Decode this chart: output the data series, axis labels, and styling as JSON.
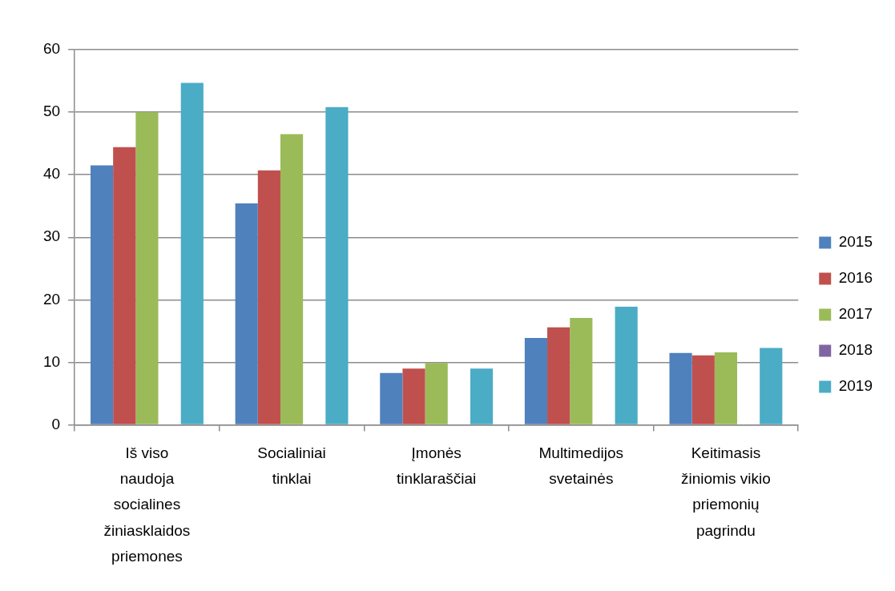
{
  "chart_data": {
    "type": "bar",
    "categories": [
      "Iš viso naudoja socialines žiniasklaidos priemones",
      "Socialiniai tinklai",
      "Įmonės tinklaraščiai",
      "Multimedijos svetainės",
      "Keitimasis žiniomis vikio priemonių pagrindu"
    ],
    "series": [
      {
        "name": "2015",
        "color": "#4f81bd",
        "values": [
          41.5,
          35.4,
          8.3,
          13.9,
          11.5
        ]
      },
      {
        "name": "2016",
        "color": "#c0504d",
        "values": [
          44.4,
          40.7,
          9.0,
          15.6,
          11.1
        ]
      },
      {
        "name": "2017",
        "color": "#9bbb59",
        "values": [
          50.0,
          46.5,
          9.9,
          17.1,
          11.6
        ]
      },
      {
        "name": "2018",
        "color": "#8064a2",
        "values": [
          null,
          null,
          null,
          null,
          null
        ]
      },
      {
        "name": "2019",
        "color": "#4bacc6",
        "values": [
          54.7,
          50.8,
          9.0,
          18.9,
          12.3
        ]
      }
    ],
    "ylim": [
      0,
      60
    ],
    "yticks": [
      0,
      10,
      20,
      30,
      40,
      50,
      60
    ],
    "grid": "y",
    "legend": "right"
  }
}
